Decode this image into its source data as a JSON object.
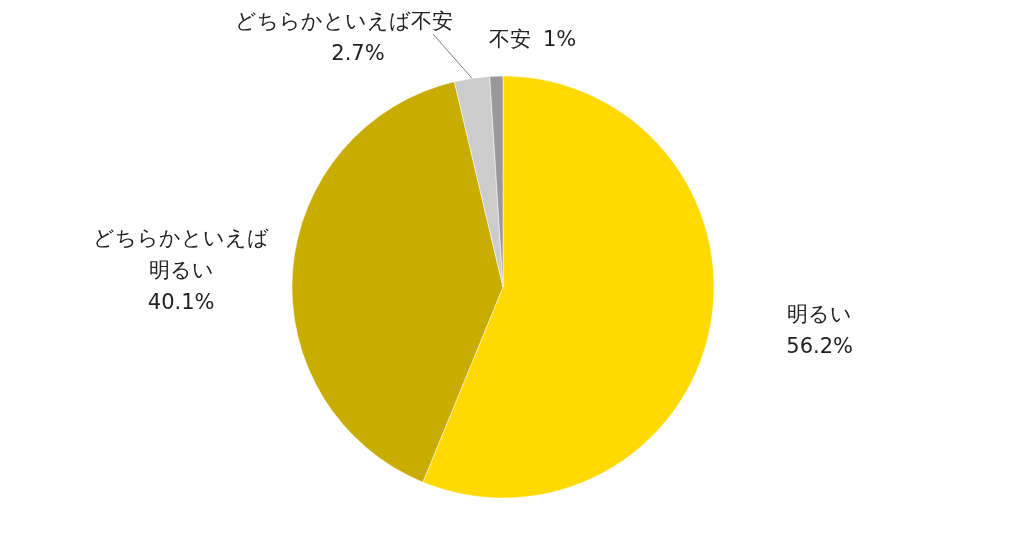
{
  "chart_data": {
    "type": "pie",
    "categories": [
      "明るい",
      "どちらかといえば明るい",
      "どちらかといえば不安",
      "不安"
    ],
    "values": [
      56.2,
      40.1,
      2.7,
      1
    ],
    "colors": [
      "#ffd900",
      "#c8ad00",
      "#cccccc",
      "#999999"
    ],
    "value_labels": [
      "56.2%",
      "40.1%",
      "2.7%",
      "1%"
    ]
  }
}
